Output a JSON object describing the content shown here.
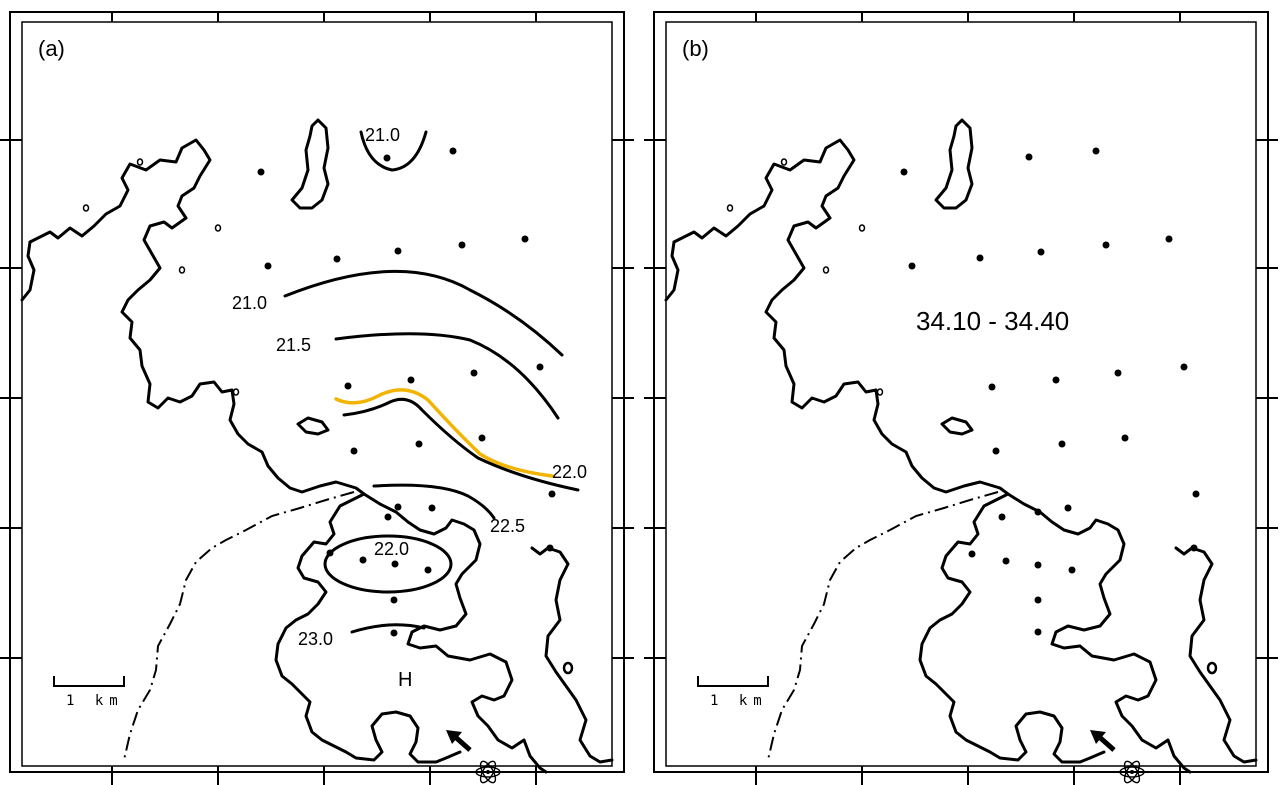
{
  "panels": [
    {
      "id": "a",
      "letter": "(a)",
      "scale_label": "1 km",
      "isotherms": [
        {
          "value": "21.0",
          "note": "north cap"
        },
        {
          "value": "21.0"
        },
        {
          "value": "21.5"
        },
        {
          "value": "22.0",
          "highlight_color": "#f2b400"
        },
        {
          "value": "22.5"
        },
        {
          "value": "22.0",
          "note": "closed ellipse"
        },
        {
          "value": "23.0"
        }
      ],
      "marker": "H"
    },
    {
      "id": "b",
      "letter": "(b)",
      "scale_label": "1 km",
      "range_label": "34.10 - 34.40"
    }
  ],
  "colors": {
    "lines": "#000000",
    "highlight": "#f2b400",
    "background": "#ffffff"
  },
  "icons": [
    "arrow-icon",
    "atom-icon"
  ]
}
